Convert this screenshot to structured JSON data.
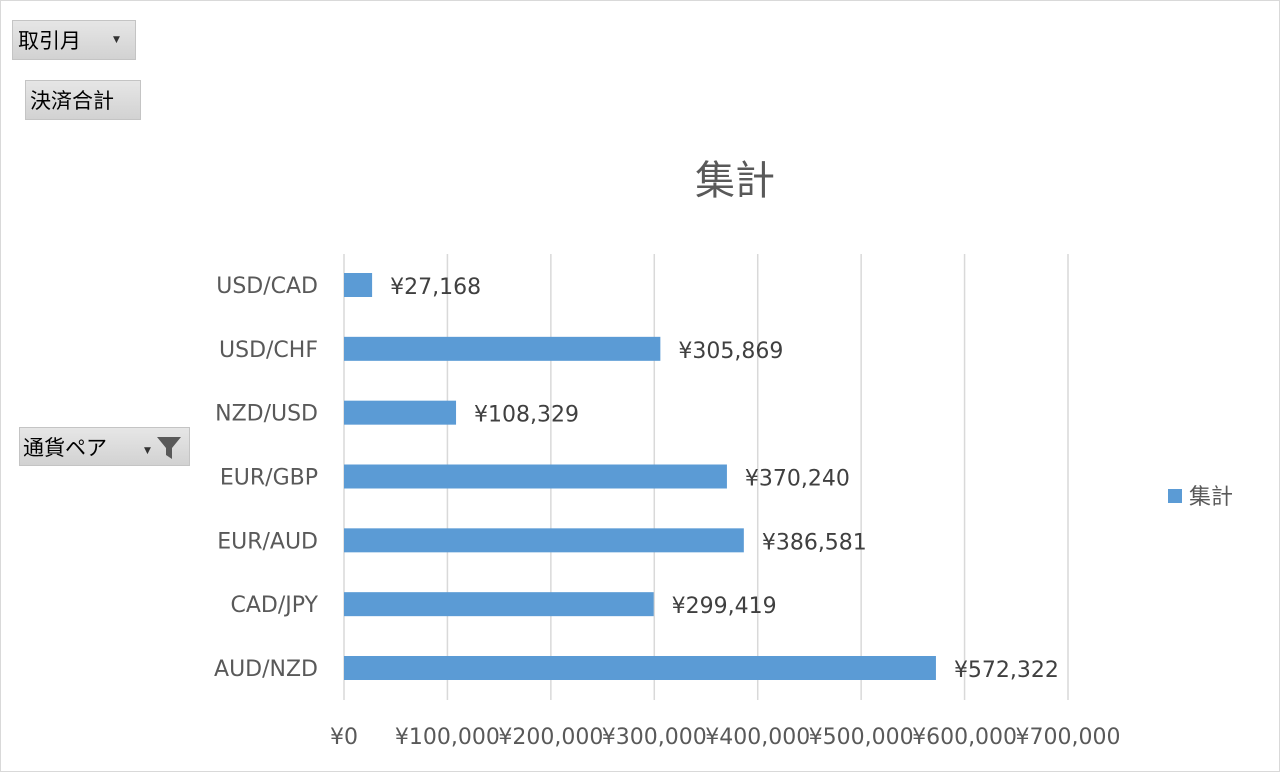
{
  "fields": {
    "month": "取引月",
    "sum": "決済合計",
    "pair": "通貨ペア"
  },
  "icons": {
    "dropdown": "dropdown-arrow-icon",
    "filter": "filter-icon"
  },
  "colors": {
    "bar": "#5b9bd5",
    "gridline": "#d9d9d9",
    "button": "#d9d9d9"
  },
  "chart_data": {
    "type": "bar",
    "orientation": "horizontal",
    "title": "集計",
    "categories": [
      "USD/CAD",
      "USD/CHF",
      "NZD/USD",
      "EUR/GBP",
      "EUR/AUD",
      "CAD/JPY",
      "AUD/NZD"
    ],
    "series": [
      {
        "name": "集計",
        "values": [
          27168,
          305869,
          108329,
          370240,
          386581,
          299419,
          572322
        ]
      }
    ],
    "data_labels": [
      "¥27,168",
      "¥305,869",
      "¥108,329",
      "¥370,240",
      "¥386,581",
      "¥299,419",
      "¥572,322"
    ],
    "x_ticks": [
      "¥0",
      "¥100,000",
      "¥200,000",
      "¥300,000",
      "¥400,000",
      "¥500,000",
      "¥600,000",
      "¥700,000"
    ],
    "xlim": [
      0,
      700000
    ],
    "grid": true,
    "legend_position": "right"
  }
}
